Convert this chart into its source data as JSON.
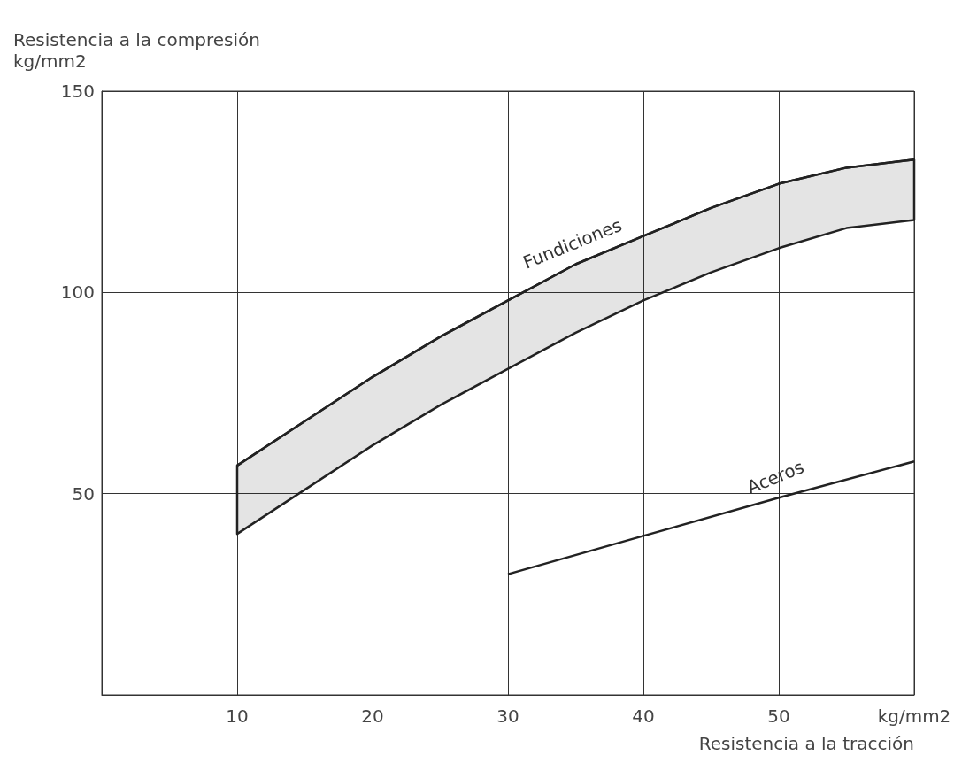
{
  "chart_data": {
    "type": "line",
    "xlabel": "Resistencia a la tracción",
    "ylabel": "Resistencia a la compresión\nkg/mm2",
    "xlim": [
      0,
      60
    ],
    "xticks": [
      10,
      20,
      30,
      40,
      50,
      {
        "value": 60,
        "label": "kg/mm2"
      }
    ],
    "ylim": [
      0,
      150
    ],
    "yticks": [
      50,
      100,
      150
    ],
    "grid": true,
    "legend": false,
    "marker": "none",
    "line_style": "solid",
    "series": [
      {
        "name": "Fundiciones",
        "color": "#222222",
        "x": [
          10,
          15,
          20,
          25,
          30,
          35,
          40,
          45,
          50,
          55,
          60
        ],
        "values": [
          57,
          68,
          79,
          89,
          98,
          107,
          114,
          121,
          127,
          131,
          133
        ],
        "lower": [
          40,
          51,
          62,
          72,
          81,
          90,
          98,
          105,
          111,
          116,
          118
        ],
        "upper": [
          57,
          68,
          79,
          89,
          98,
          107,
          114,
          121,
          127,
          131,
          133
        ]
      },
      {
        "name": "Aceros",
        "color": "#222222",
        "x": [
          30,
          40,
          50,
          60
        ],
        "values": [
          30,
          39.5,
          49,
          58
        ]
      }
    ]
  }
}
